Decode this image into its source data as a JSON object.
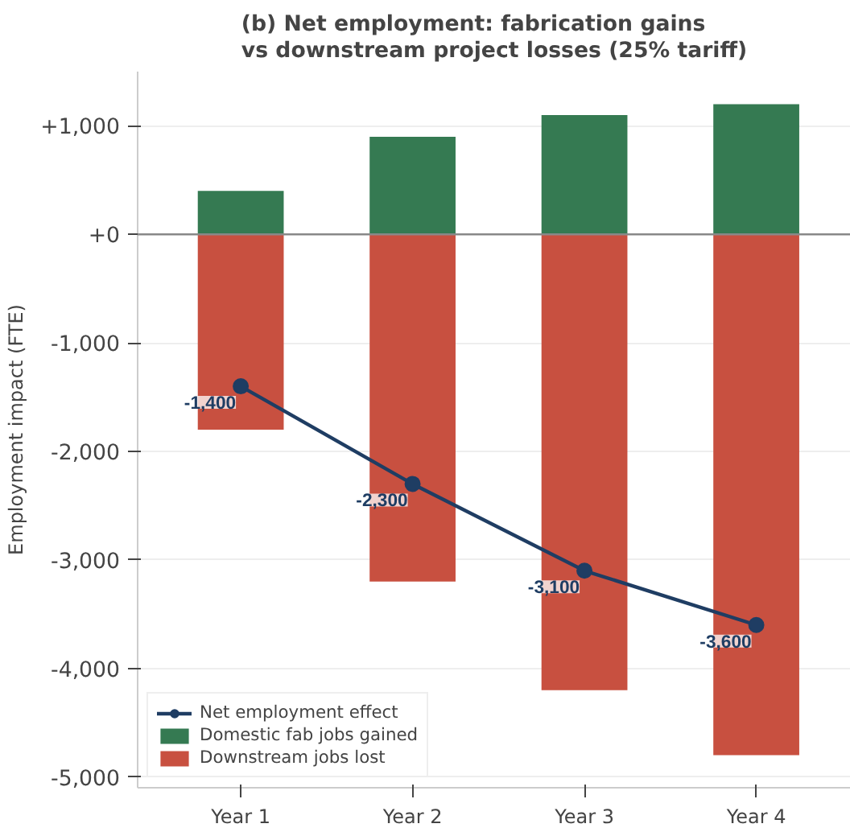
{
  "chart_data": {
    "type": "bar",
    "title": "(b) Net employment: fabrication gains\nvs downstream project losses (25% tariff)",
    "ylabel": "Employment impact (FTE)",
    "categories": [
      "Year 1",
      "Year 2",
      "Year 3",
      "Year 4"
    ],
    "stacked": true,
    "series": [
      {
        "name": "Domestic fab jobs gained",
        "color": "#357a52",
        "values": [
          400,
          900,
          1100,
          1200
        ]
      },
      {
        "name": "Downstream jobs lost",
        "color": "#c85040",
        "values": [
          -1800,
          -3200,
          -4200,
          -4800
        ]
      },
      {
        "name": "Net employment effect",
        "type": "line",
        "color": "#1f3d63",
        "marker": "circle",
        "values": [
          -1400,
          -2300,
          -3100,
          -3600
        ],
        "value_labels": [
          "-1,400",
          "-2,300",
          "-3,100",
          "-3,600"
        ]
      }
    ],
    "ylim": [
      -5100,
      1500
    ],
    "yticks": [
      {
        "value": -5000,
        "label": "-5,000"
      },
      {
        "value": -4000,
        "label": "-4,000"
      },
      {
        "value": -3000,
        "label": "-3,000"
      },
      {
        "value": -2000,
        "label": "-2,000"
      },
      {
        "value": -1000,
        "label": "-1,000"
      },
      {
        "value": 0,
        "label": "+0"
      },
      {
        "value": 1000,
        "label": "+1,000"
      }
    ],
    "ref_lines": [
      {
        "axis": "y",
        "value": 0,
        "color": "#888888"
      }
    ],
    "grid": "y",
    "legend": "bottom left"
  }
}
